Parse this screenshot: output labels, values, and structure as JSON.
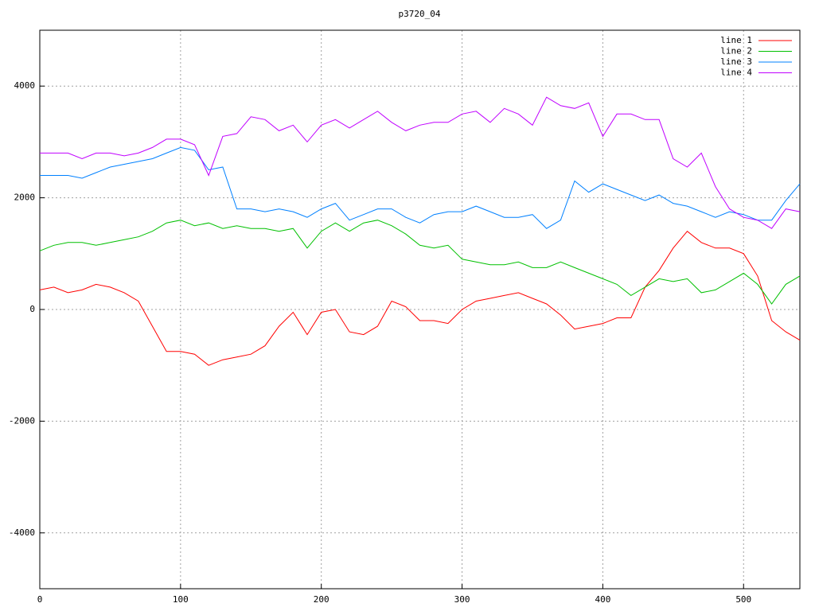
{
  "chart_data": {
    "type": "line",
    "title": "p3720_04",
    "x": [
      0,
      10,
      20,
      30,
      40,
      50,
      60,
      70,
      80,
      90,
      100,
      110,
      120,
      130,
      140,
      150,
      160,
      170,
      180,
      190,
      200,
      210,
      220,
      230,
      240,
      250,
      260,
      270,
      280,
      290,
      300,
      310,
      320,
      330,
      340,
      350,
      360,
      370,
      380,
      390,
      400,
      410,
      420,
      430,
      440,
      450,
      460,
      470,
      480,
      490,
      500,
      510,
      520,
      530,
      540
    ],
    "series": [
      {
        "name": "line 1",
        "color": "#ff0000",
        "values": [
          350,
          400,
          300,
          350,
          450,
          400,
          300,
          150,
          -300,
          -750,
          -750,
          -800,
          -1000,
          -900,
          -850,
          -800,
          -650,
          -300,
          -50,
          -450,
          -50,
          0,
          -400,
          -450,
          -300,
          150,
          50,
          -200,
          -200,
          -250,
          0,
          150,
          200,
          250,
          300,
          200,
          100,
          -100,
          -350,
          -300,
          -250,
          -150,
          -150,
          400,
          700,
          1100,
          1400,
          1200,
          1100,
          1100,
          1000,
          600,
          -200,
          -400,
          -550
        ]
      },
      {
        "name": "line 2",
        "color": "#00c000",
        "values": [
          1050,
          1150,
          1200,
          1200,
          1150,
          1200,
          1250,
          1300,
          1400,
          1550,
          1600,
          1500,
          1550,
          1450,
          1500,
          1450,
          1450,
          1400,
          1450,
          1100,
          1400,
          1550,
          1400,
          1550,
          1600,
          1500,
          1350,
          1150,
          1100,
          1150,
          900,
          850,
          800,
          800,
          850,
          750,
          750,
          850,
          750,
          650,
          550,
          450,
          250,
          400,
          550,
          500,
          550,
          300,
          350,
          500,
          650,
          450,
          100,
          450,
          600
        ]
      },
      {
        "name": "line 3",
        "color": "#0080ff",
        "values": [
          2400,
          2400,
          2400,
          2350,
          2450,
          2550,
          2600,
          2650,
          2700,
          2800,
          2900,
          2850,
          2500,
          2550,
          1800,
          1800,
          1750,
          1800,
          1750,
          1650,
          1800,
          1900,
          1600,
          1700,
          1800,
          1800,
          1650,
          1550,
          1700,
          1750,
          1750,
          1850,
          1750,
          1650,
          1650,
          1700,
          1450,
          1600,
          2300,
          2100,
          2250,
          2150,
          2050,
          1950,
          2050,
          1900,
          1850,
          1750,
          1650,
          1750,
          1700,
          1600,
          1600,
          1950,
          2250
        ]
      },
      {
        "name": "line 4",
        "color": "#c000ff",
        "values": [
          2800,
          2800,
          2800,
          2700,
          2800,
          2800,
          2750,
          2800,
          2900,
          3050,
          3050,
          2950,
          2400,
          3100,
          3150,
          3450,
          3400,
          3200,
          3300,
          3000,
          3300,
          3400,
          3250,
          3400,
          3550,
          3350,
          3200,
          3300,
          3350,
          3350,
          3500,
          3550,
          3350,
          3600,
          3500,
          3300,
          3800,
          3650,
          3600,
          3700,
          3100,
          3500,
          3500,
          3400,
          3400,
          2700,
          2550,
          2800,
          2200,
          1800,
          1650,
          1600,
          1450,
          1800,
          1750
        ]
      }
    ],
    "xlim": [
      0,
      540
    ],
    "ylim": [
      -5000,
      5000
    ],
    "xticks": [
      0,
      100,
      200,
      300,
      400,
      500
    ],
    "yticks": [
      -4000,
      -2000,
      0,
      2000,
      4000
    ],
    "grid": true,
    "legend": "top-right"
  }
}
